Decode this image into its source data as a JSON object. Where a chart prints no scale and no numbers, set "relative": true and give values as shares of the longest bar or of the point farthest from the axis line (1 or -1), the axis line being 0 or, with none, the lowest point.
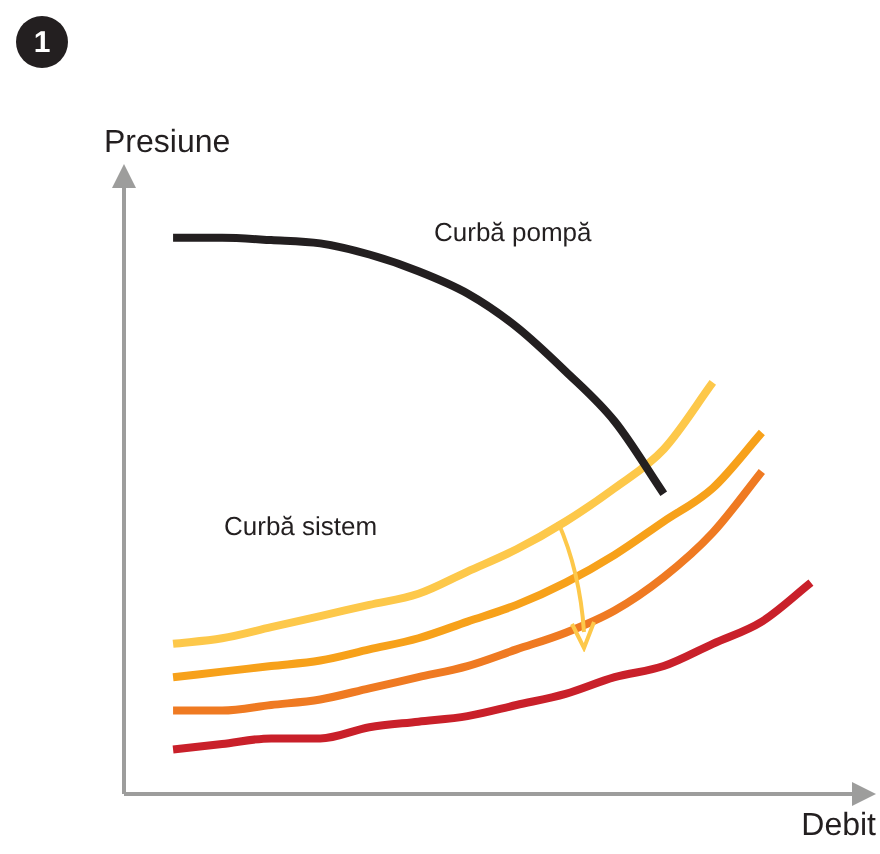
{
  "chart_data": {
    "type": "line",
    "relative": true,
    "xlabel": "Debit",
    "ylabel": "Presiune",
    "categories": [
      null,
      null,
      null,
      null,
      null,
      null,
      null,
      null,
      null,
      null,
      null,
      null,
      null,
      null,
      null,
      null
    ],
    "series": [
      {
        "color": "#231f20",
        "values": [
          null,
          1,
          1,
          0.996,
          0.99,
          0.97,
          0.94,
          0.9,
          0.84,
          0.76,
          0.67,
          0.54,
          null,
          null,
          null,
          null
        ]
      },
      {
        "color": "#fdc84a",
        "values": [
          null,
          0.27,
          0.28,
          0.3,
          0.32,
          0.34,
          0.36,
          0.4,
          0.44,
          0.49,
          0.55,
          0.62,
          0.74,
          null,
          null,
          null
        ]
      },
      {
        "color": "#f7a11a",
        "values": [
          null,
          0.21,
          0.22,
          0.23,
          0.24,
          0.26,
          0.28,
          0.31,
          0.34,
          0.38,
          0.43,
          0.49,
          0.55,
          0.65,
          null,
          null
        ]
      },
      {
        "color": "#ef7a22",
        "values": [
          null,
          0.15,
          0.15,
          0.16,
          0.17,
          0.19,
          0.21,
          0.23,
          0.26,
          0.29,
          0.33,
          0.39,
          0.47,
          0.58,
          null,
          null
        ]
      },
      {
        "color": "#c9202a",
        "values": [
          null,
          0.08,
          0.09,
          0.1,
          0.1,
          0.12,
          0.13,
          0.14,
          0.16,
          0.18,
          0.21,
          0.23,
          0.27,
          0.31,
          0.38,
          null
        ]
      }
    ],
    "annotations": [
      "Curbă pompă",
      "Curbă sistem",
      "1"
    ]
  }
}
